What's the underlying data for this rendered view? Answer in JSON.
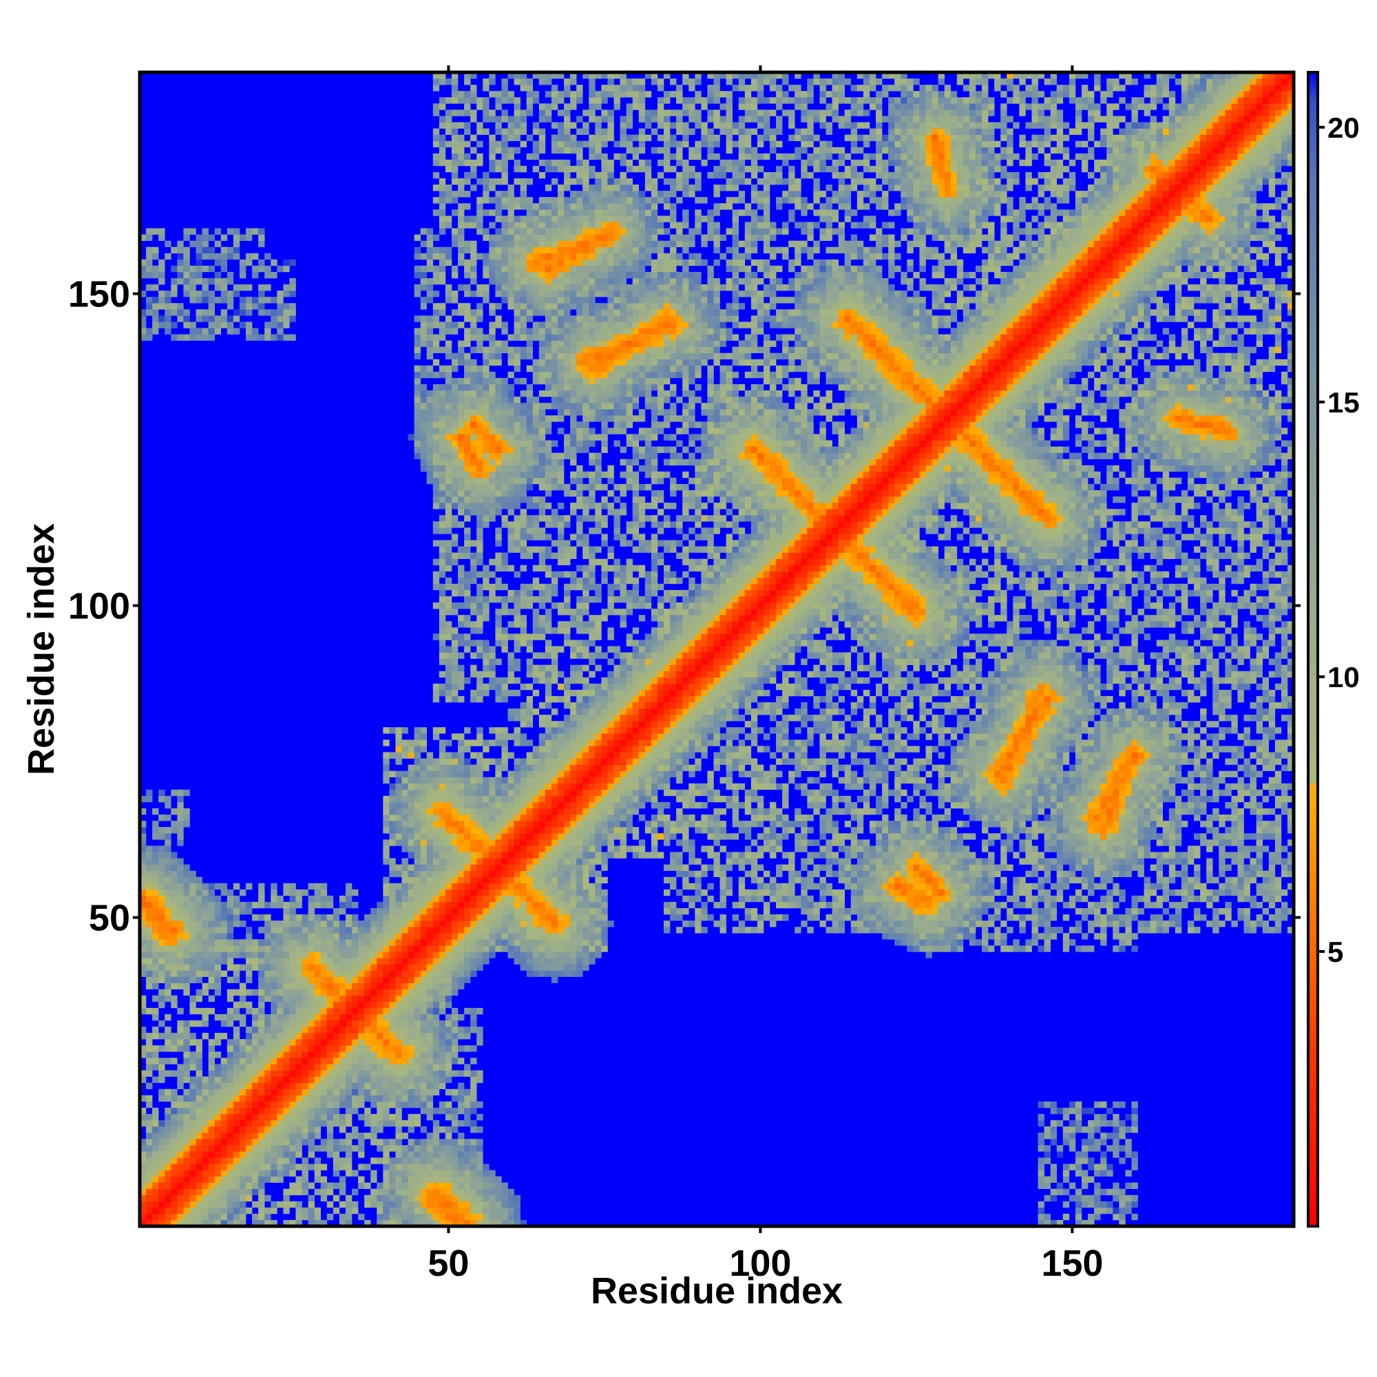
{
  "chart_data": {
    "type": "heatmap",
    "title": "",
    "xlabel": "Residue index",
    "ylabel": "Residue index",
    "x_range": [
      1,
      185
    ],
    "y_range": [
      1,
      185
    ],
    "x_ticks": [
      50,
      100,
      150
    ],
    "y_ticks": [
      50,
      100,
      150
    ],
    "colorbar": {
      "range": [
        0,
        21
      ],
      "ticks": [
        5,
        10,
        15,
        20
      ],
      "stops": [
        {
          "value": 0,
          "color": "#ff0000"
        },
        {
          "value": 3,
          "color": "#ff3300"
        },
        {
          "value": 5,
          "color": "#ff6600"
        },
        {
          "value": 7,
          "color": "#ff9900"
        },
        {
          "value": 8,
          "color": "#ffb000"
        },
        {
          "value": 8.1,
          "color": "#aab87a"
        },
        {
          "value": 11,
          "color": "#9cae8c"
        },
        {
          "value": 15,
          "color": "#7e98a0"
        },
        {
          "value": 19,
          "color": "#5878b8"
        },
        {
          "value": 20.5,
          "color": "#3050c8"
        },
        {
          "value": 21,
          "color": "#0000ff"
        }
      ]
    },
    "contacts": [
      {
        "name": "main-diagonal",
        "from": [
          1,
          1
        ],
        "to": [
          185,
          185
        ],
        "width": 3,
        "min": 0.5
      },
      {
        "name": "hairpin-1",
        "from": [
          28,
          42
        ],
        "to": [
          42,
          28
        ],
        "width": 3,
        "min": 5
      },
      {
        "name": "hairpin-2",
        "from": [
          49,
          67
        ],
        "to": [
          67,
          49
        ],
        "width": 3,
        "min": 5
      },
      {
        "name": "hairpin-3",
        "from": [
          99,
          125
        ],
        "to": [
          125,
          99
        ],
        "width": 3,
        "min": 5
      },
      {
        "name": "hairpin-4",
        "from": [
          114,
          146
        ],
        "to": [
          146,
          114
        ],
        "width": 3,
        "min": 5
      },
      {
        "name": "strand-pair-a",
        "from": [
          1,
          53
        ],
        "to": [
          6,
          48
        ],
        "width": 3,
        "min": 5
      },
      {
        "name": "strand-pair-b",
        "from": [
          53,
          1
        ],
        "to": [
          48,
          6
        ],
        "width": 3,
        "min": 5
      },
      {
        "name": "strand-pair-c",
        "from": [
          47,
          5
        ],
        "to": [
          52,
          1
        ],
        "width": 2,
        "min": 5
      },
      {
        "name": "strand-pair-d",
        "from": [
          5,
          47
        ],
        "to": [
          1,
          52
        ],
        "width": 2,
        "min": 5
      },
      {
        "name": "strand-pair-e",
        "from": [
          54,
          129
        ],
        "to": [
          58,
          125
        ],
        "width": 2,
        "min": 5
      },
      {
        "name": "strand-pair-f",
        "from": [
          129,
          54
        ],
        "to": [
          125,
          58
        ],
        "width": 2,
        "min": 5
      },
      {
        "name": "strand-pair-g",
        "from": [
          64,
          155
        ],
        "to": [
          75,
          159
        ],
        "width": 2,
        "min": 5
      },
      {
        "name": "strand-pair-h",
        "from": [
          155,
          64
        ],
        "to": [
          159,
          75
        ],
        "width": 2,
        "min": 5
      },
      {
        "name": "strand-pair-i",
        "from": [
          72,
          139
        ],
        "to": [
          86,
          145
        ],
        "width": 2,
        "min": 5
      },
      {
        "name": "strand-pair-j",
        "from": [
          139,
          72
        ],
        "to": [
          145,
          86
        ],
        "width": 2,
        "min": 5
      },
      {
        "name": "strand-pair-k",
        "from": [
          154,
          66
        ],
        "to": [
          160,
          76
        ],
        "width": 2,
        "min": 5
      },
      {
        "name": "strand-pair-l",
        "from": [
          66,
          154
        ],
        "to": [
          76,
          160
        ],
        "width": 2,
        "min": 5
      },
      {
        "name": "strand-pair-m",
        "from": [
          138,
          73
        ],
        "to": [
          146,
          85
        ],
        "width": 2,
        "min": 5
      },
      {
        "name": "strand-pair-n",
        "from": [
          73,
          138
        ],
        "to": [
          85,
          146
        ],
        "width": 2,
        "min": 5
      },
      {
        "name": "strand-pair-o",
        "from": [
          122,
          55
        ],
        "to": [
          127,
          52
        ],
        "width": 2,
        "min": 5
      },
      {
        "name": "strand-pair-p",
        "from": [
          55,
          122
        ],
        "to": [
          52,
          127
        ],
        "width": 2,
        "min": 5
      },
      {
        "name": "strand-pair-q",
        "from": [
          163,
          170
        ],
        "to": [
          172,
          162
        ],
        "width": 2,
        "min": 5
      },
      {
        "name": "strand-pair-r",
        "from": [
          167,
          130
        ],
        "to": [
          175,
          128
        ],
        "width": 2,
        "min": 5
      },
      {
        "name": "strand-pair-s",
        "from": [
          130,
          167
        ],
        "to": [
          128,
          175
        ],
        "width": 2,
        "min": 5
      }
    ],
    "contact_regions": [
      {
        "x": [
          1,
          20
        ],
        "y": [
          1,
          45
        ],
        "min": 8
      },
      {
        "x": [
          1,
          45
        ],
        "y": [
          1,
          20
        ],
        "min": 8
      },
      {
        "x": [
          20,
          50
        ],
        "y": [
          15,
          50
        ],
        "min": 9
      },
      {
        "x": [
          38,
          55
        ],
        "y": [
          1,
          35
        ],
        "min": 10
      },
      {
        "x": [
          1,
          35
        ],
        "y": [
          38,
          55
        ],
        "min": 10
      },
      {
        "x": [
          1,
          25
        ],
        "y": [
          143,
          156
        ],
        "min": 11
      },
      {
        "x": [
          1,
          8
        ],
        "y": [
          62,
          70
        ],
        "min": 12
      },
      {
        "x": [
          40,
          75
        ],
        "y": [
          45,
          80
        ],
        "min": 8
      },
      {
        "x": [
          60,
          100
        ],
        "y": [
          60,
          100
        ],
        "min": 8
      },
      {
        "x": [
          48,
          80
        ],
        "y": [
          85,
          185
        ],
        "min": 9
      },
      {
        "x": [
          85,
          185
        ],
        "y": [
          48,
          80
        ],
        "min": 9
      },
      {
        "x": [
          75,
          140
        ],
        "y": [
          100,
          185
        ],
        "min": 9
      },
      {
        "x": [
          100,
          185
        ],
        "y": [
          75,
          140
        ],
        "min": 9
      },
      {
        "x": [
          90,
          140
        ],
        "y": [
          90,
          140
        ],
        "min": 8
      },
      {
        "x": [
          130,
          185
        ],
        "y": [
          130,
          185
        ],
        "min": 8
      },
      {
        "x": [
          115,
          160
        ],
        "y": [
          60,
          110
        ],
        "min": 9
      },
      {
        "x": [
          60,
          110
        ],
        "y": [
          115,
          160
        ],
        "min": 9
      },
      {
        "x": [
          85,
          105
        ],
        "y": [
          55,
          65
        ],
        "min": 9
      },
      {
        "x": [
          55,
          65
        ],
        "y": [
          85,
          105
        ],
        "min": 9
      },
      {
        "x": [
          145,
          160
        ],
        "y": [
          1,
          20
        ],
        "min": 11
      },
      {
        "x": [
          1,
          20
        ],
        "y": [
          145,
          160
        ],
        "min": 11
      },
      {
        "x": [
          125,
          160
        ],
        "y": [
          45,
          60
        ],
        "min": 10
      },
      {
        "x": [
          45,
          60
        ],
        "y": [
          125,
          160
        ],
        "min": 10
      }
    ]
  }
}
